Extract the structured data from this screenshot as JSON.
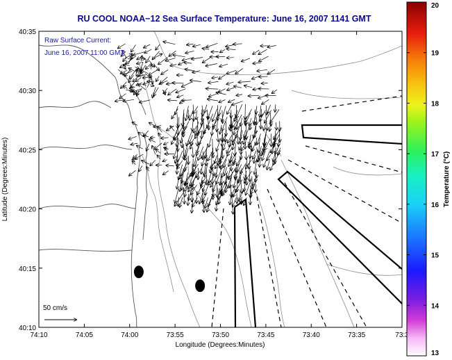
{
  "chart_data": {
    "type": "map",
    "title": "RU COOL  NOAA−12  Sea Surface Temperature:  June 16, 2007 1141 GMT",
    "xlabel": "Longitude (Degrees:Minutes)",
    "ylabel": "Latitude (Degrees:Minutes)",
    "x_tick_labels": [
      "74:10",
      "74:05",
      "74:00",
      "73:55",
      "73:50",
      "73:45",
      "73:40",
      "73:35",
      "73:3"
    ],
    "y_tick_labels": [
      "40:35",
      "40:30",
      "40:25",
      "40:20",
      "40:15",
      "40:10"
    ],
    "xlim_minutes": [
      -74.1667,
      -73.5
    ],
    "ylim": [
      40.1667,
      40.5833
    ],
    "inset_lines": [
      "Raw Surface Current:",
      "June 16, 2007 11:00 GMT"
    ],
    "scale_label": "50 cm/s",
    "colorbar": {
      "label": "Temperature (°C)",
      "ticks": [
        "20",
        "19",
        "18",
        "17",
        "16",
        "15",
        "14",
        "13"
      ],
      "min": 13,
      "max": 20
    },
    "markers": [
      {
        "name": "marker-1",
        "lon": -73.9833,
        "lat": 40.2447
      },
      {
        "name": "marker-2",
        "lon": -73.8708,
        "lat": 40.2253
      }
    ],
    "colors": {
      "title": "#0a0a8a",
      "inset": "#1a1a9a",
      "contour": "#888888",
      "coast": "#555555"
    }
  }
}
